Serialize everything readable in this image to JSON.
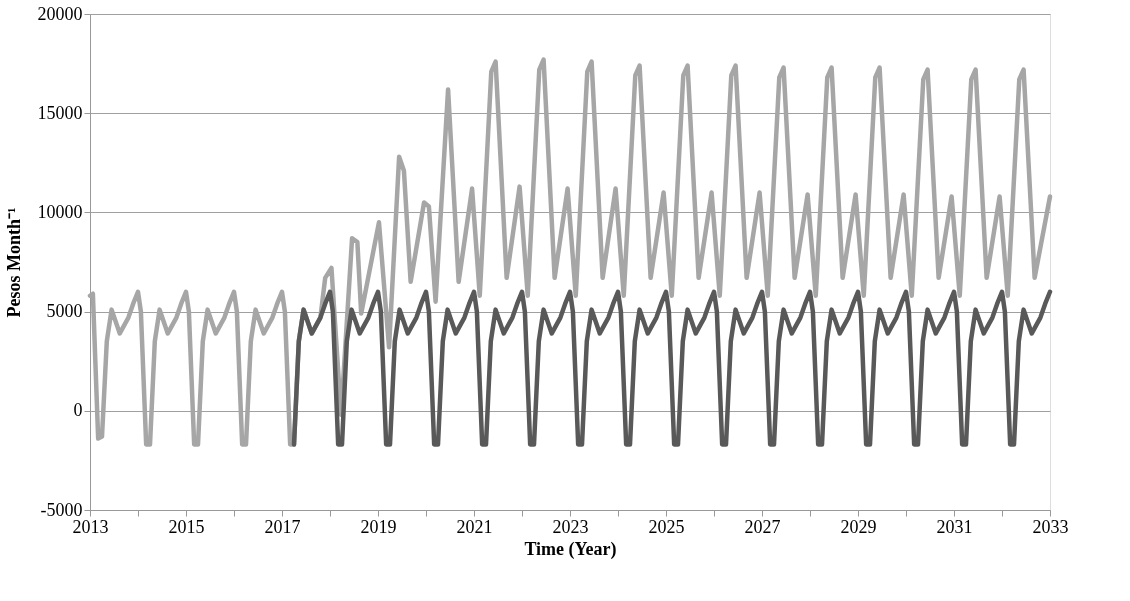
{
  "chart_data": {
    "type": "line",
    "xlabel": "Time (Year)",
    "ylabel": "Pesos Month⁻¹",
    "xlim": [
      2013,
      2033
    ],
    "ylim": [
      -5000,
      20000
    ],
    "xticks": [
      2013,
      {
        "value": 2014,
        "label": null
      },
      2015,
      {
        "value": 2016,
        "label": null
      },
      2017,
      {
        "value": 2018,
        "label": null
      },
      2019,
      {
        "value": 2020,
        "label": null
      },
      2021,
      {
        "value": 2022,
        "label": null
      },
      2023,
      {
        "value": 2024,
        "label": null
      },
      2025,
      {
        "value": 2026,
        "label": null
      },
      2027,
      {
        "value": 2028,
        "label": null
      },
      2029,
      {
        "value": 2030,
        "label": null
      },
      2031,
      {
        "value": 2032,
        "label": null
      },
      2033
    ],
    "yticks": [
      -5000,
      0,
      5000,
      10000,
      15000,
      20000
    ],
    "grid": "y",
    "legend": false,
    "marker": "none",
    "line_style": "solid",
    "series": [
      {
        "color": "#a6a6a6",
        "x": [
          2013,
          2013.06,
          2013.17,
          2013.25,
          2013.35,
          2013.45,
          2013.62,
          2013.8,
          2013.9,
          2014,
          2014.06,
          2014.17,
          2014.25,
          2014.35,
          2014.45,
          2014.62,
          2014.8,
          2014.9,
          2015,
          2015.06,
          2015.17,
          2015.25,
          2015.35,
          2015.45,
          2015.62,
          2015.8,
          2015.9,
          2016,
          2016.06,
          2016.17,
          2016.25,
          2016.35,
          2016.45,
          2016.62,
          2016.8,
          2016.9,
          2017,
          2017.06,
          2017.17,
          2017.25,
          2017.35,
          2017.45,
          2017.62,
          2017.8,
          2017.9,
          2018.03,
          2018.23,
          2018.46,
          2018.57,
          2018.65,
          2019.02,
          2019.23,
          2019.44,
          2019.54,
          2019.68,
          2019.96,
          2020.06,
          2020.2,
          2020.46,
          2020.68,
          2020.96,
          2021.12,
          2021.36,
          2021.45,
          2021.68,
          2021.95,
          2022.12,
          2022.36,
          2022.45,
          2022.68,
          2022.95,
          2023.12,
          2023.36,
          2023.45,
          2023.68,
          2023.95,
          2024.12,
          2024.36,
          2024.45,
          2024.68,
          2024.95,
          2025.12,
          2025.36,
          2025.45,
          2025.68,
          2025.95,
          2026.12,
          2026.36,
          2026.45,
          2026.68,
          2026.95,
          2027.12,
          2027.36,
          2027.45,
          2027.68,
          2027.95,
          2028.12,
          2028.36,
          2028.45,
          2028.68,
          2028.95,
          2029.12,
          2029.36,
          2029.45,
          2029.68,
          2029.95,
          2030.12,
          2030.36,
          2030.45,
          2030.68,
          2030.95,
          2031.12,
          2031.36,
          2031.45,
          2031.68,
          2031.95,
          2032.12,
          2032.36,
          2032.45,
          2032.68,
          2033
        ],
        "values": [
          5800,
          5900,
          -1400,
          -1300,
          3500,
          5100,
          3900,
          4700,
          5400,
          6000,
          5000,
          -1700,
          -1700,
          3500,
          5100,
          3900,
          4700,
          5400,
          6000,
          5000,
          -1700,
          -1700,
          3500,
          5100,
          3900,
          4700,
          5400,
          6000,
          5000,
          -1700,
          -1700,
          3500,
          5100,
          3900,
          4700,
          5400,
          6000,
          5000,
          -1700,
          -1700,
          3500,
          5100,
          3900,
          4700,
          6700,
          7200,
          -200,
          8700,
          8500,
          4900,
          9500,
          3200,
          12800,
          12100,
          6500,
          10500,
          10300,
          5500,
          16200,
          6500,
          11200,
          5800,
          17100,
          17600,
          6700,
          11300,
          5800,
          17200,
          17700,
          6700,
          11200,
          5800,
          17100,
          17600,
          6700,
          11200,
          5800,
          16900,
          17400,
          6700,
          11000,
          5800,
          16900,
          17400,
          6700,
          11000,
          5800,
          16900,
          17400,
          6700,
          11000,
          5800,
          16800,
          17300,
          6700,
          10900,
          5800,
          16800,
          17300,
          6700,
          10900,
          5800,
          16800,
          17300,
          6700,
          10900,
          5800,
          16700,
          17200,
          6700,
          10800,
          5800,
          16700,
          17200,
          6700,
          10800,
          5800,
          16700,
          17200,
          6700,
          10800
        ]
      },
      {
        "color": "#595959",
        "x": [
          2017.25,
          2017.35,
          2017.45,
          2017.62,
          2017.8,
          2017.9,
          2018,
          2018.06,
          2018.17,
          2018.25,
          2018.35,
          2018.45,
          2018.62,
          2018.8,
          2018.9,
          2019,
          2019.06,
          2019.17,
          2019.25,
          2019.35,
          2019.45,
          2019.62,
          2019.8,
          2019.9,
          2020,
          2020.06,
          2020.17,
          2020.25,
          2020.35,
          2020.45,
          2020.62,
          2020.8,
          2020.9,
          2021,
          2021.06,
          2021.17,
          2021.25,
          2021.35,
          2021.45,
          2021.62,
          2021.8,
          2021.9,
          2022,
          2022.06,
          2022.17,
          2022.25,
          2022.35,
          2022.45,
          2022.62,
          2022.8,
          2022.9,
          2023,
          2023.06,
          2023.17,
          2023.25,
          2023.35,
          2023.45,
          2023.62,
          2023.8,
          2023.9,
          2024,
          2024.06,
          2024.17,
          2024.25,
          2024.35,
          2024.45,
          2024.62,
          2024.8,
          2024.9,
          2025,
          2025.06,
          2025.17,
          2025.25,
          2025.35,
          2025.45,
          2025.62,
          2025.8,
          2025.9,
          2026,
          2026.06,
          2026.17,
          2026.25,
          2026.35,
          2026.45,
          2026.62,
          2026.8,
          2026.9,
          2027,
          2027.06,
          2027.17,
          2027.25,
          2027.35,
          2027.45,
          2027.62,
          2027.8,
          2027.9,
          2028,
          2028.06,
          2028.17,
          2028.25,
          2028.35,
          2028.45,
          2028.62,
          2028.8,
          2028.9,
          2029,
          2029.06,
          2029.17,
          2029.25,
          2029.35,
          2029.45,
          2029.62,
          2029.8,
          2029.9,
          2030,
          2030.06,
          2030.17,
          2030.25,
          2030.35,
          2030.45,
          2030.62,
          2030.8,
          2030.9,
          2031,
          2031.06,
          2031.17,
          2031.25,
          2031.35,
          2031.45,
          2031.62,
          2031.8,
          2031.9,
          2032,
          2032.06,
          2032.17,
          2032.25,
          2032.35,
          2032.45,
          2032.62,
          2032.8,
          2032.9,
          2033
        ],
        "values": [
          -1700,
          3500,
          5100,
          3900,
          4700,
          5400,
          6000,
          5000,
          -1700,
          -1700,
          3500,
          5100,
          3900,
          4700,
          5400,
          6000,
          5000,
          -1700,
          -1700,
          3500,
          5100,
          3900,
          4700,
          5400,
          6000,
          5000,
          -1700,
          -1700,
          3500,
          5100,
          3900,
          4700,
          5400,
          6000,
          5000,
          -1700,
          -1700,
          3500,
          5100,
          3900,
          4700,
          5400,
          6000,
          5000,
          -1700,
          -1700,
          3500,
          5100,
          3900,
          4700,
          5400,
          6000,
          5000,
          -1700,
          -1700,
          3500,
          5100,
          3900,
          4700,
          5400,
          6000,
          5000,
          -1700,
          -1700,
          3500,
          5100,
          3900,
          4700,
          5400,
          6000,
          5000,
          -1700,
          -1700,
          3500,
          5100,
          3900,
          4700,
          5400,
          6000,
          5000,
          -1700,
          -1700,
          3500,
          5100,
          3900,
          4700,
          5400,
          6000,
          5000,
          -1700,
          -1700,
          3500,
          5100,
          3900,
          4700,
          5400,
          6000,
          5000,
          -1700,
          -1700,
          3500,
          5100,
          3900,
          4700,
          5400,
          6000,
          5000,
          -1700,
          -1700,
          3500,
          5100,
          3900,
          4700,
          5400,
          6000,
          5000,
          -1700,
          -1700,
          3500,
          5100,
          3900,
          4700,
          5400,
          6000,
          5000,
          -1700,
          -1700,
          3500,
          5100,
          3900,
          4700,
          5400,
          6000,
          5000,
          -1700,
          -1700,
          3500,
          5100,
          3900,
          4700,
          5400,
          6000
        ]
      }
    ]
  }
}
